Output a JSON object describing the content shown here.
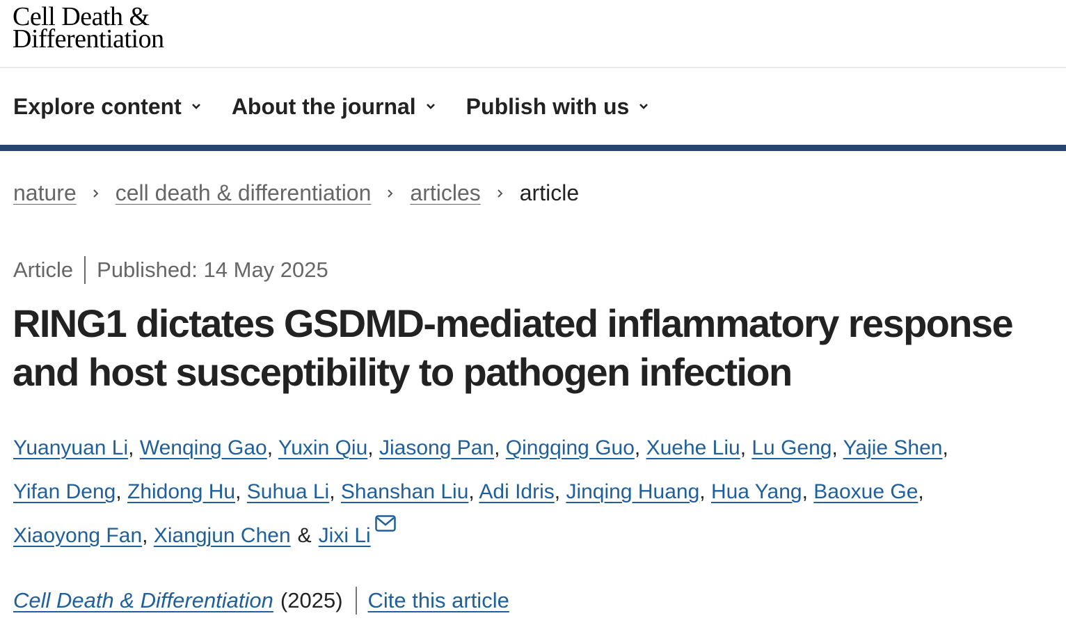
{
  "header": {
    "logo_line1": "Cell Death &",
    "logo_line2": "Differentiation"
  },
  "nav": {
    "items": [
      {
        "label": "Explore content"
      },
      {
        "label": "About the journal"
      },
      {
        "label": "Publish with us"
      }
    ]
  },
  "breadcrumb": {
    "items": [
      "nature",
      "cell death & differentiation",
      "articles"
    ],
    "current": "article"
  },
  "article": {
    "type": "Article",
    "published": "Published: 14 May 2025",
    "title": "RING1 dictates GSDMD-mediated inflammatory response and host susceptibility to pathogen infection",
    "author_lines": [
      [
        "Yuanyuan Li",
        "Wenqing Gao",
        "Yuxin Qiu",
        "Jiasong Pan",
        "Qingqing Guo",
        "Xuehe Liu",
        "Lu Geng",
        "Yajie Shen"
      ],
      [
        "Yifan Deng",
        "Zhidong Hu",
        "Suhua Li",
        "Shanshan Liu",
        "Adi Idris",
        "Jinqing Huang",
        "Hua Yang",
        "Baoxue Ge"
      ],
      [
        "Xiaoyong Fan",
        "Xiangjun Chen"
      ]
    ],
    "last_author": "Jixi Li",
    "ampersand": "&",
    "journal": "Cell Death & Differentiation",
    "year": "(2025)",
    "cite_label": "Cite this article"
  },
  "colors": {
    "link": "#1f5f9b",
    "bar": "#26466f"
  }
}
